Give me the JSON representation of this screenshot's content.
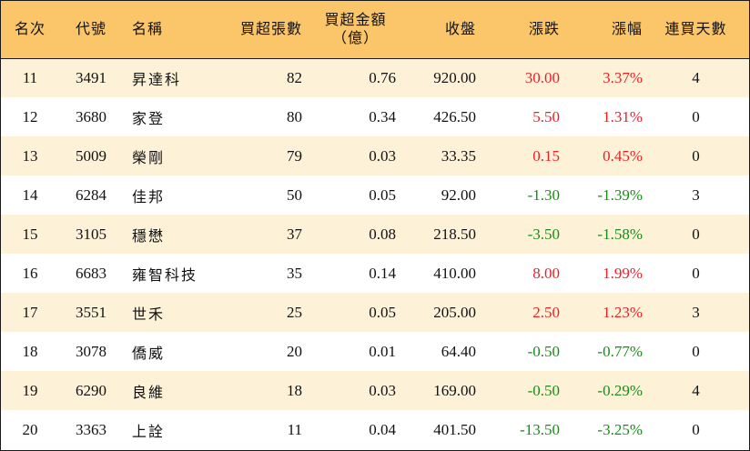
{
  "colors": {
    "header_bg": "#fbc66a",
    "row_odd_bg": "#fdf2d8",
    "row_even_bg": "#ffffff",
    "up": "#e8202a",
    "down": "#1a8a1a",
    "border": "#1a1a1a"
  },
  "headers": {
    "rank": "名次",
    "code": "代號",
    "name": "名稱",
    "net_buy_lots": "買超張數",
    "net_buy_amount_line1": "買超金額",
    "net_buy_amount_line2": "（億）",
    "close": "收盤",
    "change": "漲跌",
    "change_pct": "漲幅",
    "consecutive_days": "連買天數"
  },
  "rows": [
    {
      "rank": "11",
      "code": "3491",
      "name": "昇達科",
      "lots": "82",
      "amount": "0.76",
      "close": "920.00",
      "change": "30.00",
      "pct": "3.37%",
      "days": "4",
      "dir": "up"
    },
    {
      "rank": "12",
      "code": "3680",
      "name": "家登",
      "lots": "80",
      "amount": "0.34",
      "close": "426.50",
      "change": "5.50",
      "pct": "1.31%",
      "days": "0",
      "dir": "up"
    },
    {
      "rank": "13",
      "code": "5009",
      "name": "榮剛",
      "lots": "79",
      "amount": "0.03",
      "close": "33.35",
      "change": "0.15",
      "pct": "0.45%",
      "days": "0",
      "dir": "up"
    },
    {
      "rank": "14",
      "code": "6284",
      "name": "佳邦",
      "lots": "50",
      "amount": "0.05",
      "close": "92.00",
      "change": "-1.30",
      "pct": "-1.39%",
      "days": "3",
      "dir": "down"
    },
    {
      "rank": "15",
      "code": "3105",
      "name": "穩懋",
      "lots": "37",
      "amount": "0.08",
      "close": "218.50",
      "change": "-3.50",
      "pct": "-1.58%",
      "days": "0",
      "dir": "down"
    },
    {
      "rank": "16",
      "code": "6683",
      "name": "雍智科技",
      "lots": "35",
      "amount": "0.14",
      "close": "410.00",
      "change": "8.00",
      "pct": "1.99%",
      "days": "0",
      "dir": "up"
    },
    {
      "rank": "17",
      "code": "3551",
      "name": "世禾",
      "lots": "25",
      "amount": "0.05",
      "close": "205.00",
      "change": "2.50",
      "pct": "1.23%",
      "days": "3",
      "dir": "up"
    },
    {
      "rank": "18",
      "code": "3078",
      "name": "僑威",
      "lots": "20",
      "amount": "0.01",
      "close": "64.40",
      "change": "-0.50",
      "pct": "-0.77%",
      "days": "0",
      "dir": "down"
    },
    {
      "rank": "19",
      "code": "6290",
      "name": "良維",
      "lots": "18",
      "amount": "0.03",
      "close": "169.00",
      "change": "-0.50",
      "pct": "-0.29%",
      "days": "4",
      "dir": "down"
    },
    {
      "rank": "20",
      "code": "3363",
      "name": "上詮",
      "lots": "11",
      "amount": "0.04",
      "close": "401.50",
      "change": "-13.50",
      "pct": "-3.25%",
      "days": "0",
      "dir": "down"
    }
  ]
}
